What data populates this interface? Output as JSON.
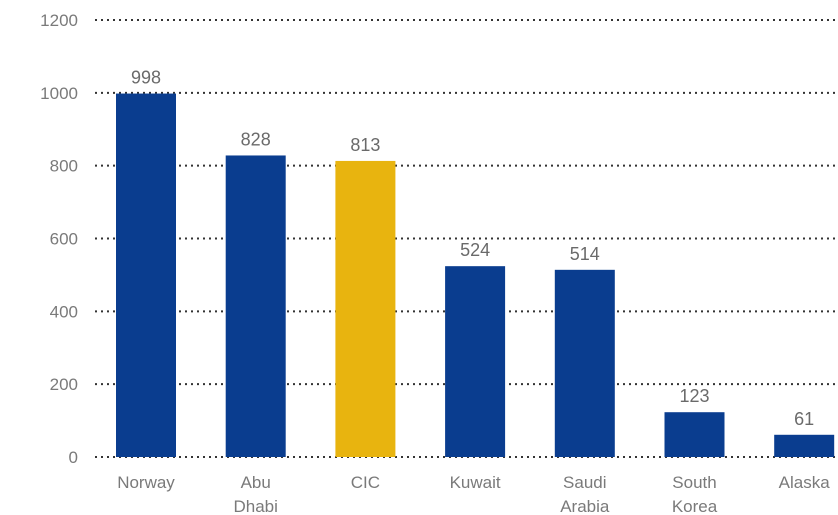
{
  "chart_data": {
    "type": "bar",
    "categories": [
      [
        "Norway"
      ],
      [
        "Abu",
        "Dhabi"
      ],
      [
        "CIC"
      ],
      [
        "Kuwait"
      ],
      [
        "Saudi",
        "Arabia"
      ],
      [
        "South",
        "Korea"
      ],
      [
        "Alaska"
      ]
    ],
    "values": [
      998,
      828,
      813,
      524,
      514,
      123,
      61
    ],
    "bar_colors": [
      "#0a3d8f",
      "#0a3d8f",
      "#e8b40f",
      "#0a3d8f",
      "#0a3d8f",
      "#0a3d8f",
      "#0a3d8f"
    ],
    "yticks": [
      0,
      200,
      400,
      600,
      800,
      1000,
      1200
    ],
    "ytick_labels": [
      "0",
      "200",
      "400",
      "600",
      "800",
      "1000",
      "1200"
    ],
    "ylim": [
      0,
      1200
    ],
    "grid": true,
    "colors": {
      "primary": "#0a3d8f",
      "highlight": "#e8b40f"
    }
  }
}
